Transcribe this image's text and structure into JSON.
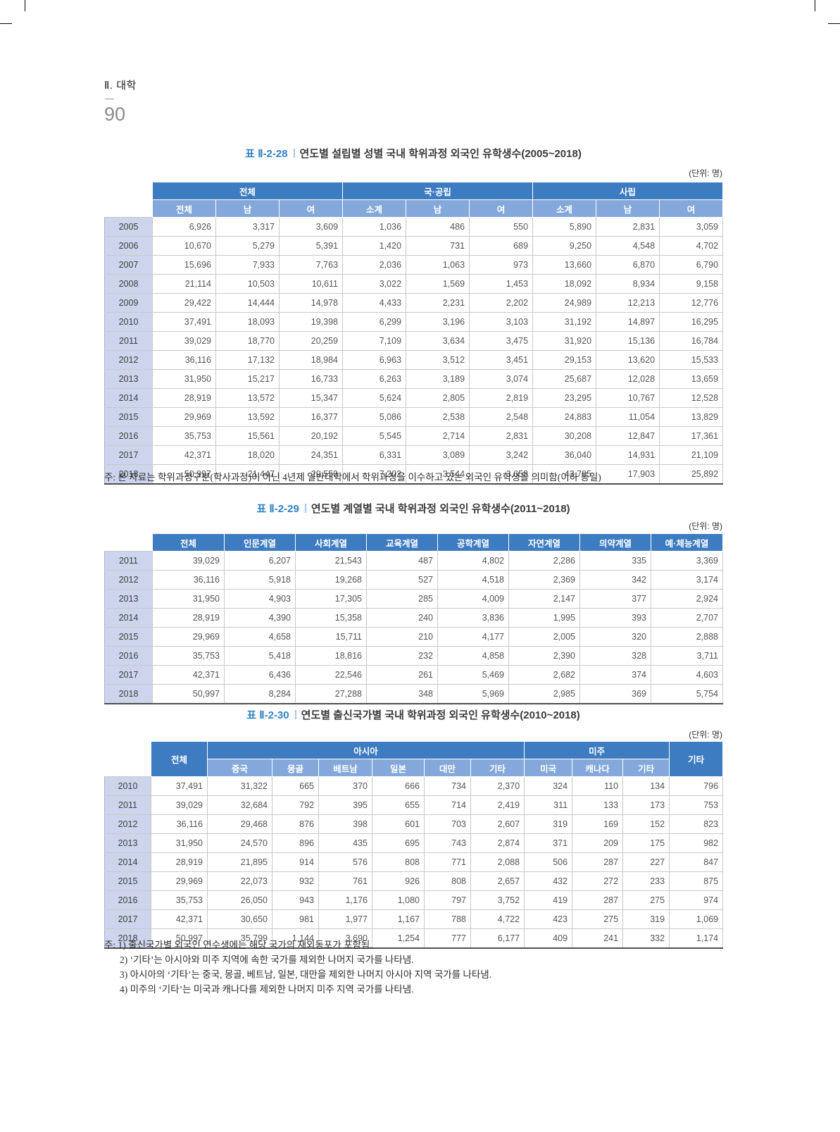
{
  "page": {
    "section_title": "Ⅱ. 대학",
    "page_number": "90"
  },
  "tables": [
    {
      "label": "표 Ⅱ-2-28",
      "title": "연도별 설립별 성별 국내 학위과정 외국인 유학생수(2005~2018)",
      "unit": "(단위: 명)",
      "group_headers": [
        {
          "label": "전체",
          "cols": 3
        },
        {
          "label": "국·공립",
          "cols": 3
        },
        {
          "label": "사립",
          "cols": 3
        }
      ],
      "sub_headers": [
        "전체",
        "남",
        "여",
        "소계",
        "남",
        "여",
        "소계",
        "남",
        "여"
      ],
      "rows": [
        {
          "year": "2005",
          "values": [
            "6,926",
            "3,317",
            "3,609",
            "1,036",
            "486",
            "550",
            "5,890",
            "2,831",
            "3,059"
          ]
        },
        {
          "year": "2006",
          "values": [
            "10,670",
            "5,279",
            "5,391",
            "1,420",
            "731",
            "689",
            "9,250",
            "4,548",
            "4,702"
          ]
        },
        {
          "year": "2007",
          "values": [
            "15,696",
            "7,933",
            "7,763",
            "2,036",
            "1,063",
            "973",
            "13,660",
            "6,870",
            "6,790"
          ]
        },
        {
          "year": "2008",
          "values": [
            "21,114",
            "10,503",
            "10,611",
            "3,022",
            "1,569",
            "1,453",
            "18,092",
            "8,934",
            "9,158"
          ]
        },
        {
          "year": "2009",
          "values": [
            "29,422",
            "14,444",
            "14,978",
            "4,433",
            "2,231",
            "2,202",
            "24,989",
            "12,213",
            "12,776"
          ]
        },
        {
          "year": "2010",
          "values": [
            "37,491",
            "18,093",
            "19,398",
            "6,299",
            "3,196",
            "3,103",
            "31,192",
            "14,897",
            "16,295"
          ]
        },
        {
          "year": "2011",
          "values": [
            "39,029",
            "18,770",
            "20,259",
            "7,109",
            "3,634",
            "3,475",
            "31,920",
            "15,136",
            "16,784"
          ]
        },
        {
          "year": "2012",
          "values": [
            "36,116",
            "17,132",
            "18,984",
            "6,963",
            "3,512",
            "3,451",
            "29,153",
            "13,620",
            "15,533"
          ]
        },
        {
          "year": "2013",
          "values": [
            "31,950",
            "15,217",
            "16,733",
            "6,263",
            "3,189",
            "3,074",
            "25,687",
            "12,028",
            "13,659"
          ]
        },
        {
          "year": "2014",
          "values": [
            "28,919",
            "13,572",
            "15,347",
            "5,624",
            "2,805",
            "2,819",
            "23,295",
            "10,767",
            "12,528"
          ]
        },
        {
          "year": "2015",
          "values": [
            "29,969",
            "13,592",
            "16,377",
            "5,086",
            "2,538",
            "2,548",
            "24,883",
            "11,054",
            "13,829"
          ]
        },
        {
          "year": "2016",
          "values": [
            "35,753",
            "15,561",
            "20,192",
            "5,545",
            "2,714",
            "2,831",
            "30,208",
            "12,847",
            "17,361"
          ]
        },
        {
          "year": "2017",
          "values": [
            "42,371",
            "18,020",
            "24,351",
            "6,331",
            "3,089",
            "3,242",
            "36,040",
            "14,931",
            "21,109"
          ]
        },
        {
          "year": "2018",
          "values": [
            "50,997",
            "21,447",
            "29,550",
            "7,202",
            "3,544",
            "3,658",
            "43,795",
            "17,903",
            "25,892"
          ]
        }
      ],
      "footnote": "주: 본 자료는 학위과정구분(학사과정)이 아닌 4년제 일반대학에서 학위과정을 이수하고 있는 외국인 유학생을 의미함(이하 동일)"
    },
    {
      "label": "표 Ⅱ-2-29",
      "title": "연도별 계열별 국내 학위과정 외국인 유학생수(2011~2018)",
      "unit": "(단위: 명)",
      "columns": [
        "전체",
        "인문계열",
        "사회계열",
        "교육계열",
        "공학계열",
        "자연계열",
        "의약계열",
        "예·체능계열"
      ],
      "rows": [
        {
          "year": "2011",
          "values": [
            "39,029",
            "6,207",
            "21,543",
            "487",
            "4,802",
            "2,286",
            "335",
            "3,369"
          ]
        },
        {
          "year": "2012",
          "values": [
            "36,116",
            "5,918",
            "19,268",
            "527",
            "4,518",
            "2,369",
            "342",
            "3,174"
          ]
        },
        {
          "year": "2013",
          "values": [
            "31,950",
            "4,903",
            "17,305",
            "285",
            "4,009",
            "2,147",
            "377",
            "2,924"
          ]
        },
        {
          "year": "2014",
          "values": [
            "28,919",
            "4,390",
            "15,358",
            "240",
            "3,836",
            "1,995",
            "393",
            "2,707"
          ]
        },
        {
          "year": "2015",
          "values": [
            "29,969",
            "4,658",
            "15,711",
            "210",
            "4,177",
            "2,005",
            "320",
            "2,888"
          ]
        },
        {
          "year": "2016",
          "values": [
            "35,753",
            "5,418",
            "18,816",
            "232",
            "4,858",
            "2,390",
            "328",
            "3,711"
          ]
        },
        {
          "year": "2017",
          "values": [
            "42,371",
            "6,436",
            "22,546",
            "261",
            "5,469",
            "2,682",
            "374",
            "4,603"
          ]
        },
        {
          "year": "2018",
          "values": [
            "50,997",
            "8,284",
            "27,288",
            "348",
            "5,969",
            "2,985",
            "369",
            "5,754"
          ]
        }
      ]
    },
    {
      "label": "표 Ⅱ-2-30",
      "title": "연도별 출신국가별 국내 학위과정 외국인 유학생수(2010~2018)",
      "unit": "(단위: 명)",
      "group_headers": [
        {
          "label": "전체",
          "cols": 1,
          "tall": true
        },
        {
          "label": "아시아",
          "cols": 6
        },
        {
          "label": "미주",
          "cols": 3
        },
        {
          "label": "기타",
          "cols": 1,
          "tall": true
        }
      ],
      "sub_headers": [
        "중국",
        "몽골",
        "베트남",
        "일본",
        "대만",
        "기타",
        "미국",
        "캐나다",
        "기타"
      ],
      "rows": [
        {
          "year": "2010",
          "values": [
            "37,491",
            "31,322",
            "665",
            "370",
            "666",
            "734",
            "2,370",
            "324",
            "110",
            "134",
            "796"
          ]
        },
        {
          "year": "2011",
          "values": [
            "39,029",
            "32,684",
            "792",
            "395",
            "655",
            "714",
            "2,419",
            "311",
            "133",
            "173",
            "753"
          ]
        },
        {
          "year": "2012",
          "values": [
            "36,116",
            "29,468",
            "876",
            "398",
            "601",
            "703",
            "2,607",
            "319",
            "169",
            "152",
            "823"
          ]
        },
        {
          "year": "2013",
          "values": [
            "31,950",
            "24,570",
            "896",
            "435",
            "695",
            "743",
            "2,874",
            "371",
            "209",
            "175",
            "982"
          ]
        },
        {
          "year": "2014",
          "values": [
            "28,919",
            "21,895",
            "914",
            "576",
            "808",
            "771",
            "2,088",
            "506",
            "287",
            "227",
            "847"
          ]
        },
        {
          "year": "2015",
          "values": [
            "29,969",
            "22,073",
            "932",
            "761",
            "926",
            "808",
            "2,657",
            "432",
            "272",
            "233",
            "875"
          ]
        },
        {
          "year": "2016",
          "values": [
            "35,753",
            "26,050",
            "943",
            "1,176",
            "1,080",
            "797",
            "3,752",
            "419",
            "287",
            "275",
            "974"
          ]
        },
        {
          "year": "2017",
          "values": [
            "42,371",
            "30,650",
            "981",
            "1,977",
            "1,167",
            "788",
            "4,722",
            "423",
            "275",
            "319",
            "1,069"
          ]
        },
        {
          "year": "2018",
          "values": [
            "50,997",
            "35,799",
            "1,144",
            "3,690",
            "1,254",
            "777",
            "6,177",
            "409",
            "241",
            "332",
            "1,174"
          ]
        }
      ],
      "footnotes": [
        "주: 1) 출신국가별 외국인 연수생에는 해당 국가의 재외동포가 포함됨.",
        "2) ‘기타’는 아시아와 미주 지역에 속한 국가를 제외한 나머지 국가를 나타냄.",
        "3) 아시아의 ‘기타’는 중국, 몽골, 베트남, 일본, 대만을 제외한 나머지 아시아 지역 국가를 나타냄.",
        "4) 미주의 ‘기타’는 미국과 캐나다를 제외한 나머지 미주 지역 국가를 나타냄."
      ]
    }
  ]
}
